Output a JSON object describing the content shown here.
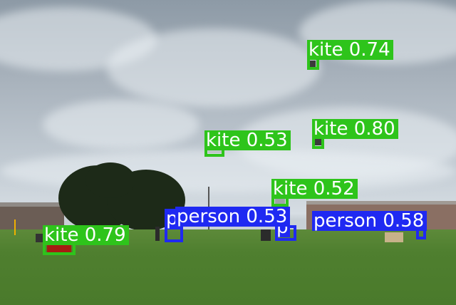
{
  "detections": [
    {
      "class": "kite",
      "score": "0.74",
      "text": "kite 0.74"
    },
    {
      "class": "kite",
      "score": "0.80",
      "text": "kite 0.80"
    },
    {
      "class": "kite",
      "score": "0.53",
      "text": "kite 0.53"
    },
    {
      "class": "kite",
      "score": "0.52",
      "text": "kite 0.52"
    },
    {
      "class": "kite",
      "score": "0.79",
      "text": "kite 0.79"
    },
    {
      "class": "person",
      "score": "0.53",
      "text": "person 0.53"
    },
    {
      "class": "person",
      "score": "0.58",
      "text": "person 0.58"
    },
    {
      "class": "person",
      "score": "",
      "text": "p"
    },
    {
      "class": "person",
      "score": "",
      "text": "p"
    }
  ],
  "colors": {
    "kite_box": "#2ec41b",
    "person_box": "#1f29f2",
    "label_text": "#ffffff"
  }
}
